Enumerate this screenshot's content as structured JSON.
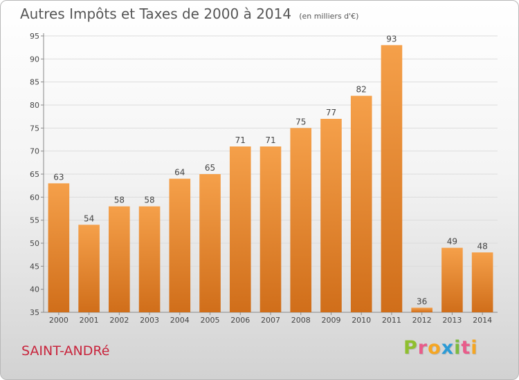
{
  "chart_data": {
    "type": "bar",
    "title": "Autres Impôts et Taxes de 2000 à 2014",
    "subtitle": "(en milliers d'€)",
    "categories": [
      "2000",
      "2001",
      "2002",
      "2003",
      "2004",
      "2005",
      "2006",
      "2007",
      "2008",
      "2009",
      "2010",
      "2011",
      "2012",
      "2013",
      "2014"
    ],
    "values": [
      63,
      54,
      58,
      58,
      64,
      65,
      71,
      71,
      75,
      77,
      82,
      93,
      36,
      49,
      48
    ],
    "ylim": [
      35,
      95
    ],
    "yticks": [
      35,
      40,
      45,
      50,
      55,
      60,
      65,
      70,
      75,
      80,
      85,
      90,
      95
    ],
    "grid": true,
    "bar_color": "#f5a04a",
    "bar_color_dark": "#d06e1a"
  },
  "footer": {
    "place": "SAINT-ANDRé",
    "logo_letters": [
      "P",
      "r",
      "o",
      "x",
      "i",
      "t",
      "i"
    ],
    "logo_colors": [
      "#8fbf2f",
      "#e85c8a",
      "#f5a623",
      "#2c9bd6",
      "#7cba3f",
      "#e85c8a",
      "#f5a623"
    ]
  }
}
